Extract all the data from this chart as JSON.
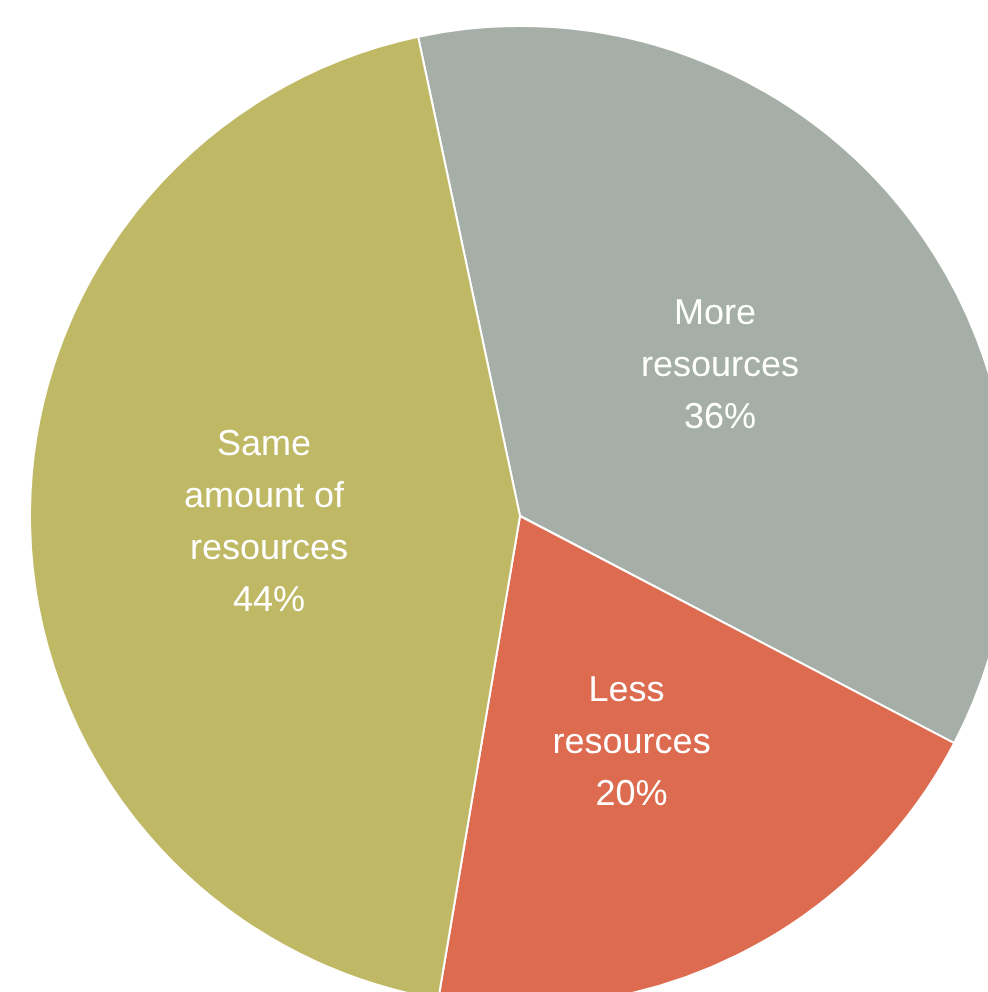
{
  "chart_data": {
    "type": "pie",
    "categories": [
      "More resources",
      "Less resources",
      "Same amount of resources"
    ],
    "values": [
      36,
      20,
      44
    ],
    "colors": [
      "#a5aea7",
      "#dc6b50",
      "#bfb865"
    ],
    "value_labels": [
      "36%",
      "20%",
      "44%"
    ],
    "legend": false
  }
}
